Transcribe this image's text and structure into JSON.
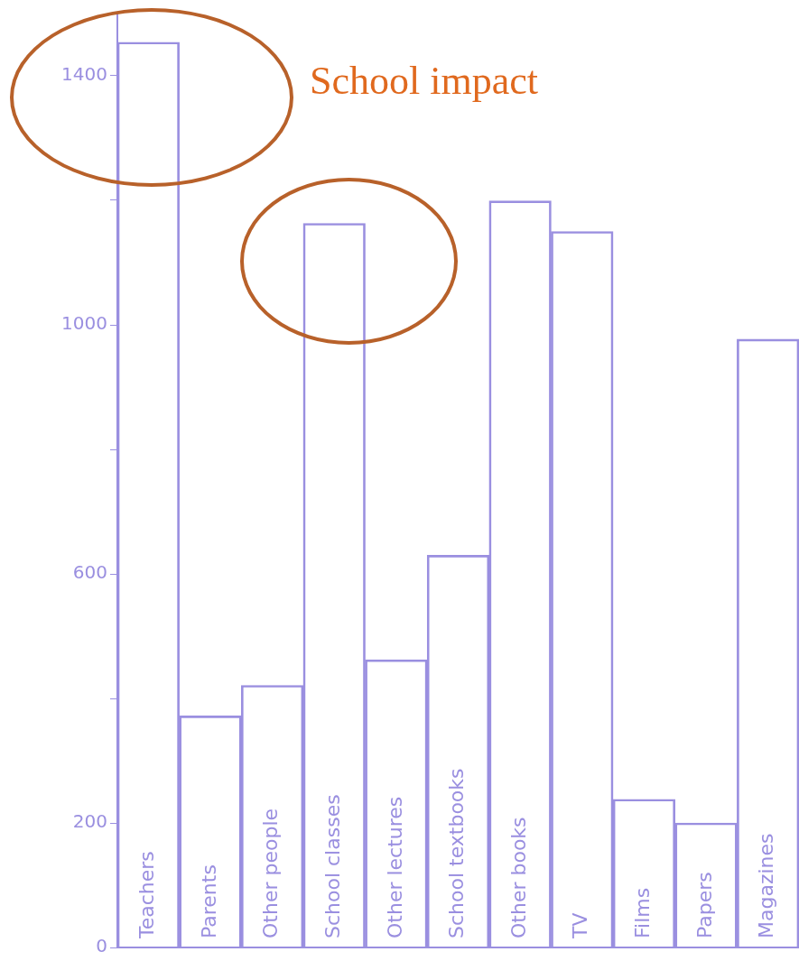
{
  "chart_data": {
    "type": "bar",
    "categories": [
      "Teachers",
      "Parents",
      "Other people",
      "School classes",
      "Other lectures",
      "School textbooks",
      "Other books",
      "TV",
      "Films",
      "Papers",
      "Magazines"
    ],
    "values": [
      1454,
      372,
      421,
      1163,
      462,
      630,
      1199,
      1150,
      238,
      200,
      977
    ],
    "color": "#9a8fe0",
    "ylim": [
      0,
      1500
    ],
    "yticks": [
      0,
      200,
      {
        "value": 400,
        "label": null
      },
      600,
      {
        "value": 800,
        "label": null
      },
      1000,
      {
        "value": 1200,
        "label": null
      },
      1400
    ],
    "grid": false,
    "legend": false,
    "annotations": [
      "School impact"
    ]
  }
}
